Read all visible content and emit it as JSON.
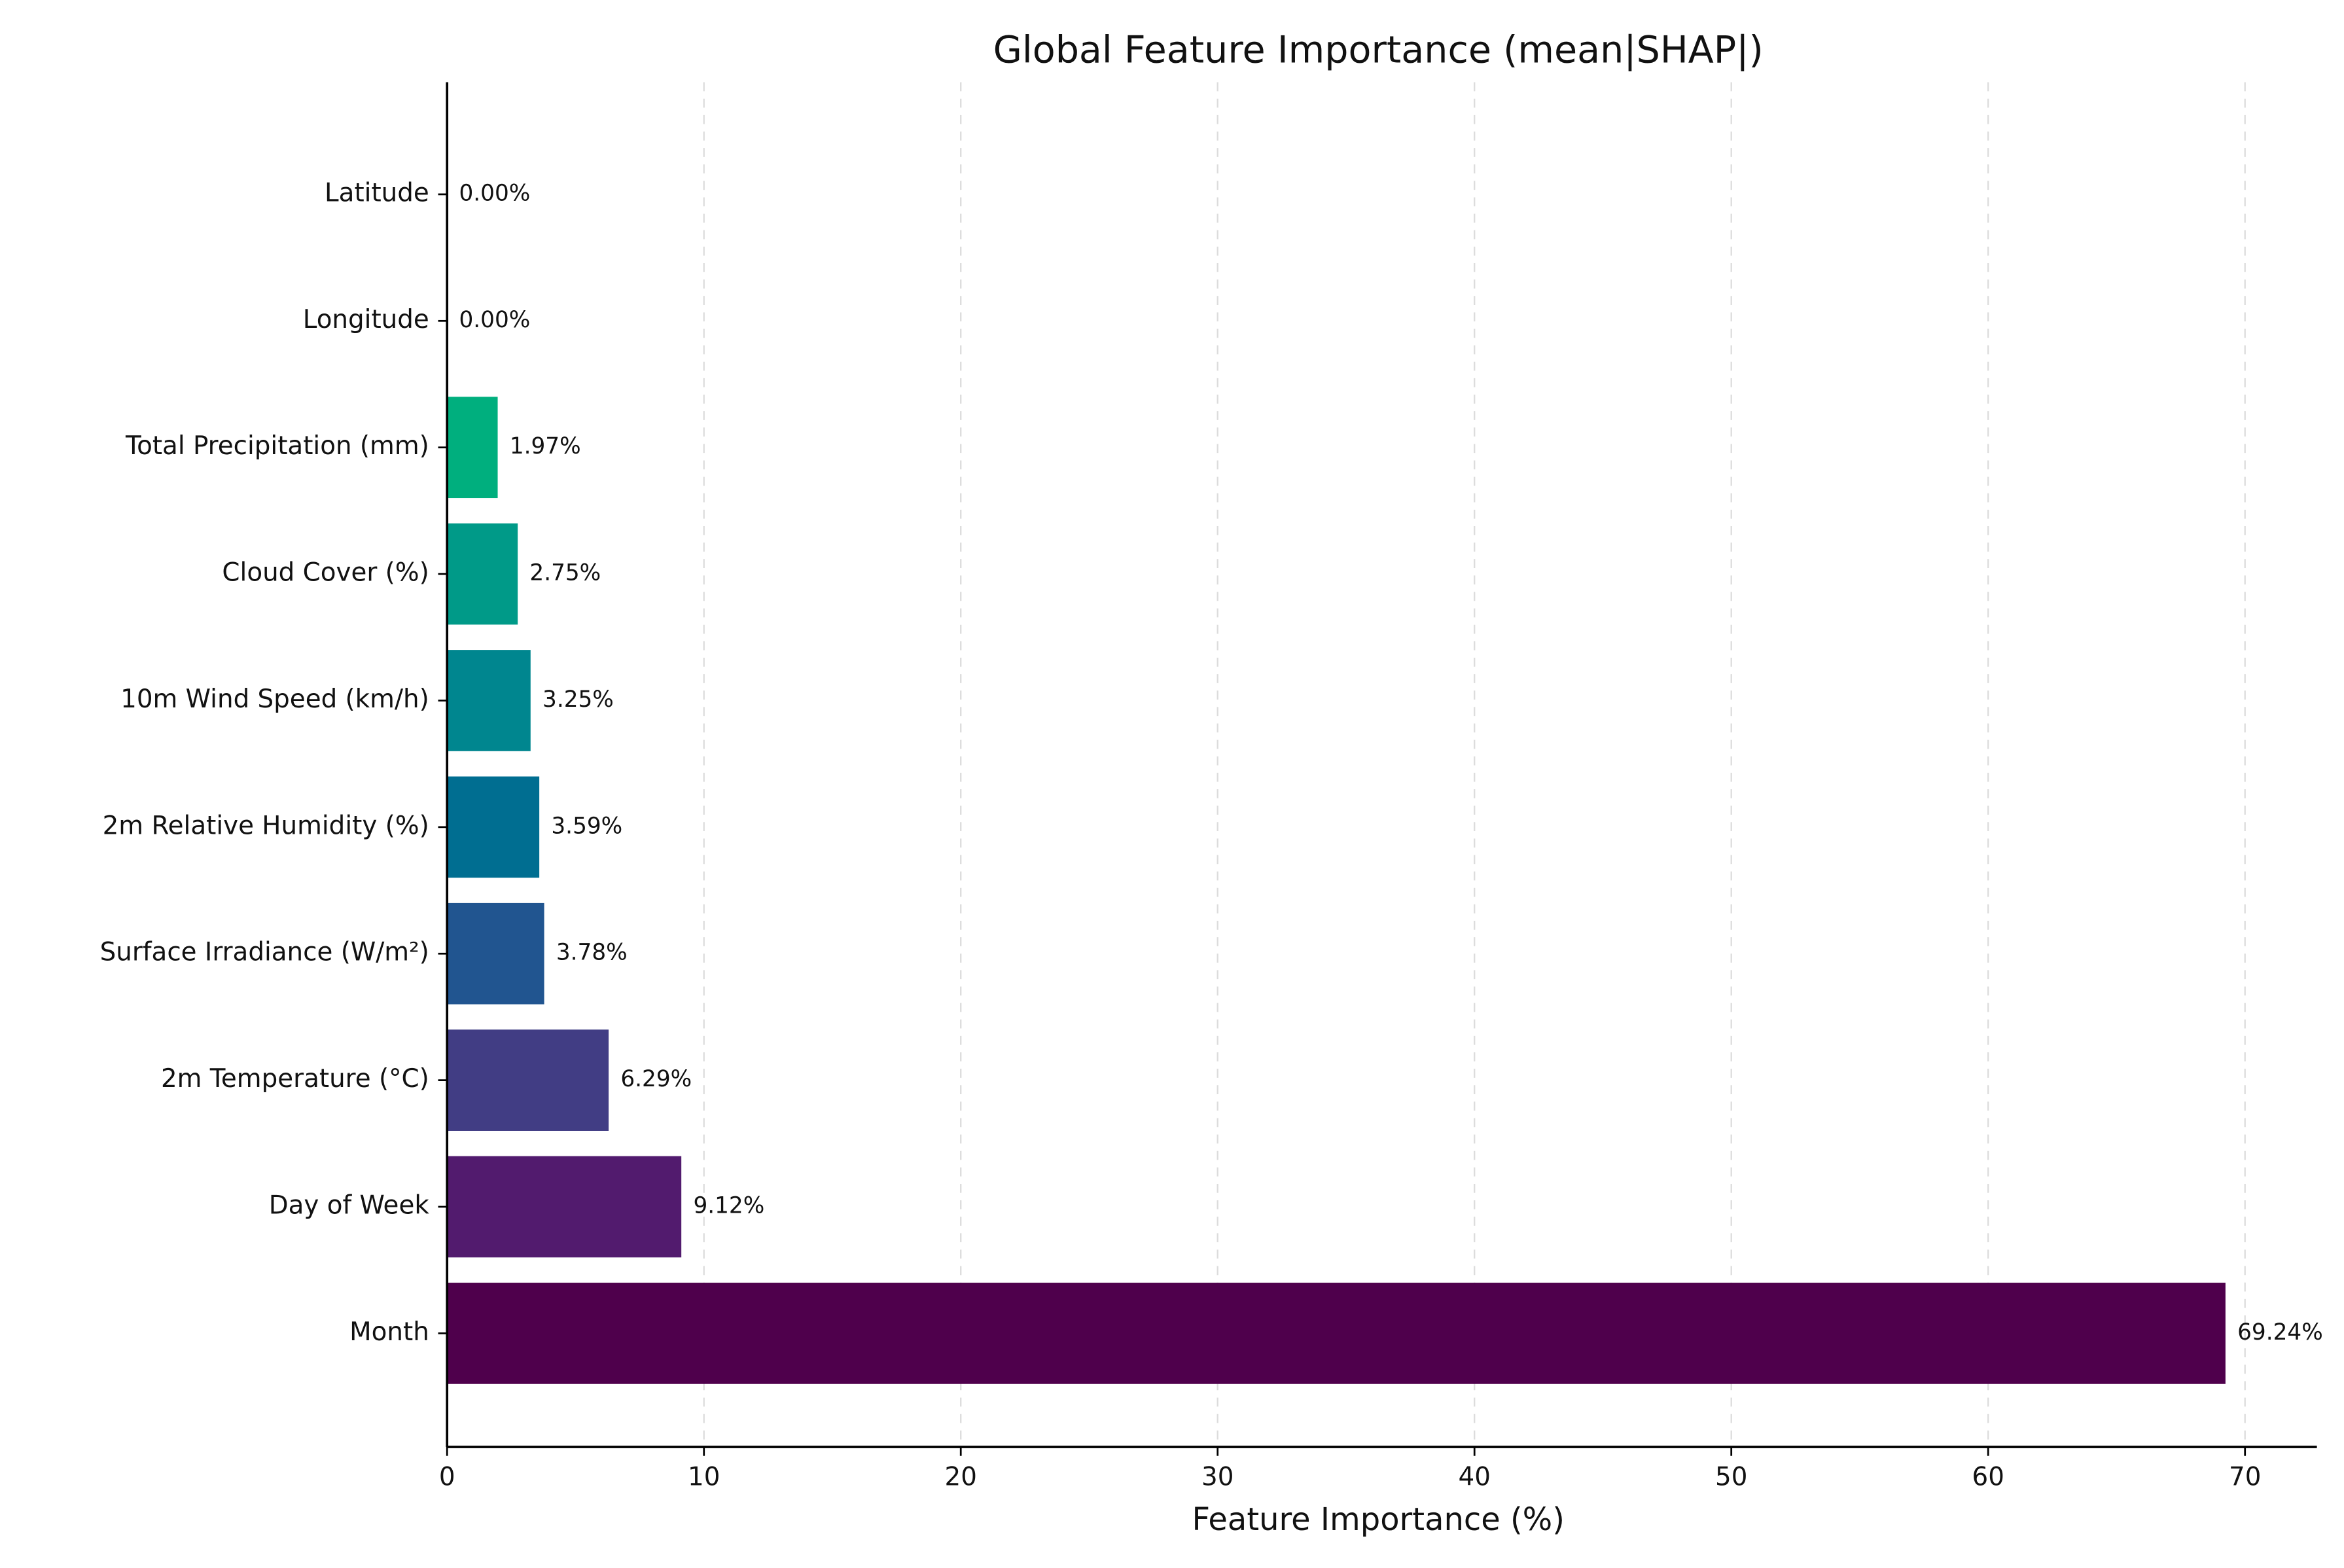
{
  "chart_data": {
    "type": "barh",
    "title": "Global Feature Importance (mean|SHAP|)",
    "x_label": "Feature Importance (%)",
    "categories": [
      "Latitude",
      "Longitude",
      "Total Precipitation (mm)",
      "Cloud Cover (%)",
      "10m Wind Speed (km/h)",
      "2m Relative Humidity (%)",
      "Surface Irradiance (W/m²)",
      "2m Temperature (°C)",
      "Day of Week",
      "Month"
    ],
    "values": [
      0,
      0,
      1.97,
      2.75,
      3.25,
      3.59,
      3.78,
      6.29,
      9.12,
      69.24
    ],
    "value_labels": [
      "0.00%",
      "0.00%",
      "1.97%",
      "2.75%",
      "3.25%",
      "3.59%",
      "3.78%",
      "6.29%",
      "9.12%",
      "69.24%"
    ],
    "colors": [
      "#2fc46e",
      "#10b978",
      "#00af7e",
      "#009a88",
      "#00868f",
      "#006e91",
      "#215590",
      "#413d84",
      "#521b6e",
      "#4f004c"
    ],
    "xlim": [
      0,
      72.8
    ],
    "xticks": [
      0,
      10,
      20,
      30,
      40,
      50,
      60,
      70
    ],
    "grid": true
  }
}
